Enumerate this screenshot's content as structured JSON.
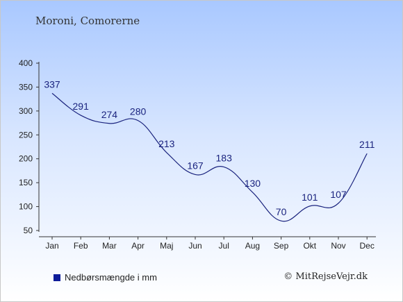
{
  "location": "Moroni, Comorerne",
  "legend_label": "Nedbørsmængde i mm",
  "credit": "© MitRejseVejr.dk",
  "line_color": "#1a237e",
  "legend_color": "#0d1c99",
  "chart_data": {
    "type": "line",
    "title": "Moroni, Comorerne",
    "categories": [
      "Jan",
      "Feb",
      "Mar",
      "Apr",
      "Maj",
      "Jun",
      "Jul",
      "Aug",
      "Sep",
      "Okt",
      "Nov",
      "Dec"
    ],
    "series": [
      {
        "name": "Nedbørsmængde i mm",
        "values": [
          337,
          291,
          274,
          280,
          213,
          167,
          183,
          130,
          70,
          101,
          107,
          211
        ]
      }
    ],
    "y_ticks": [
      50,
      100,
      150,
      200,
      250,
      300,
      350,
      400
    ],
    "ylim": [
      50,
      400
    ],
    "grid": false,
    "legend": "bottom-left"
  }
}
